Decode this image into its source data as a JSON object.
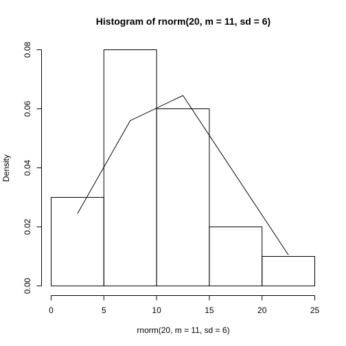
{
  "chart_data": {
    "type": "bar",
    "title": "Histogram of rnorm(20, m = 11, sd = 6)",
    "xlabel": "rnorm(20, m = 11, sd = 6)",
    "ylabel": "Density",
    "bins": [
      {
        "from": 0,
        "to": 5,
        "density": 0.03
      },
      {
        "from": 5,
        "to": 10,
        "density": 0.08
      },
      {
        "from": 10,
        "to": 15,
        "density": 0.06
      },
      {
        "from": 15,
        "to": 20,
        "density": 0.02
      },
      {
        "from": 20,
        "to": 25,
        "density": 0.01
      }
    ],
    "line": {
      "x": [
        2.5,
        7.5,
        12.5,
        22.5
      ],
      "y": [
        0.0245,
        0.056,
        0.0645,
        0.0105
      ]
    },
    "xlim": [
      0,
      25
    ],
    "ylim": [
      0,
      0.08
    ],
    "xticks": [
      0,
      5,
      10,
      15,
      20,
      25
    ],
    "xtick_labels": [
      "0",
      "5",
      "10",
      "15",
      "20",
      "25"
    ],
    "yticks": [
      0,
      0.02,
      0.04,
      0.06,
      0.08
    ],
    "ytick_labels": [
      "0.00",
      "0.02",
      "0.04",
      "0.06",
      "0.08"
    ],
    "grid": false
  }
}
